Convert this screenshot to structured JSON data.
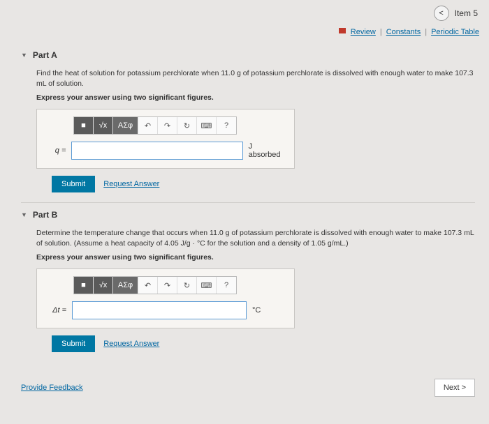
{
  "header": {
    "back_glyph": "<",
    "item_label": "Item 5"
  },
  "links": {
    "review": "Review",
    "constants": "Constants",
    "periodic": "Periodic Table"
  },
  "partA": {
    "title": "Part A",
    "prompt": "Find the heat of solution for potassium perchlorate when 11.0 g of potassium perchlorate is dissolved with enough water to make 107.3 mL of solution.",
    "instruction": "Express your answer using two significant figures.",
    "var": "q =",
    "unit": "J absorbed"
  },
  "partB": {
    "title": "Part B",
    "prompt": "Determine the temperature change that occurs when 11.0 g of potassium perchlorate is dissolved with enough water to make 107.3 mL of solution. (Assume a heat capacity of 4.05 J/g · °C for the solution and a density of 1.05 g/mL.)",
    "instruction": "Express your answer using two significant figures.",
    "var": "Δt =",
    "unit": "°C"
  },
  "toolbar": {
    "t1": "■",
    "t2": "√x",
    "t3": "ΑΣφ",
    "undo": "↶",
    "redo": "↷",
    "reset": "↻",
    "kbd": "⌨",
    "help": "?"
  },
  "actions": {
    "submit": "Submit",
    "request": "Request Answer",
    "feedback": "Provide Feedback",
    "next": "Next >"
  }
}
